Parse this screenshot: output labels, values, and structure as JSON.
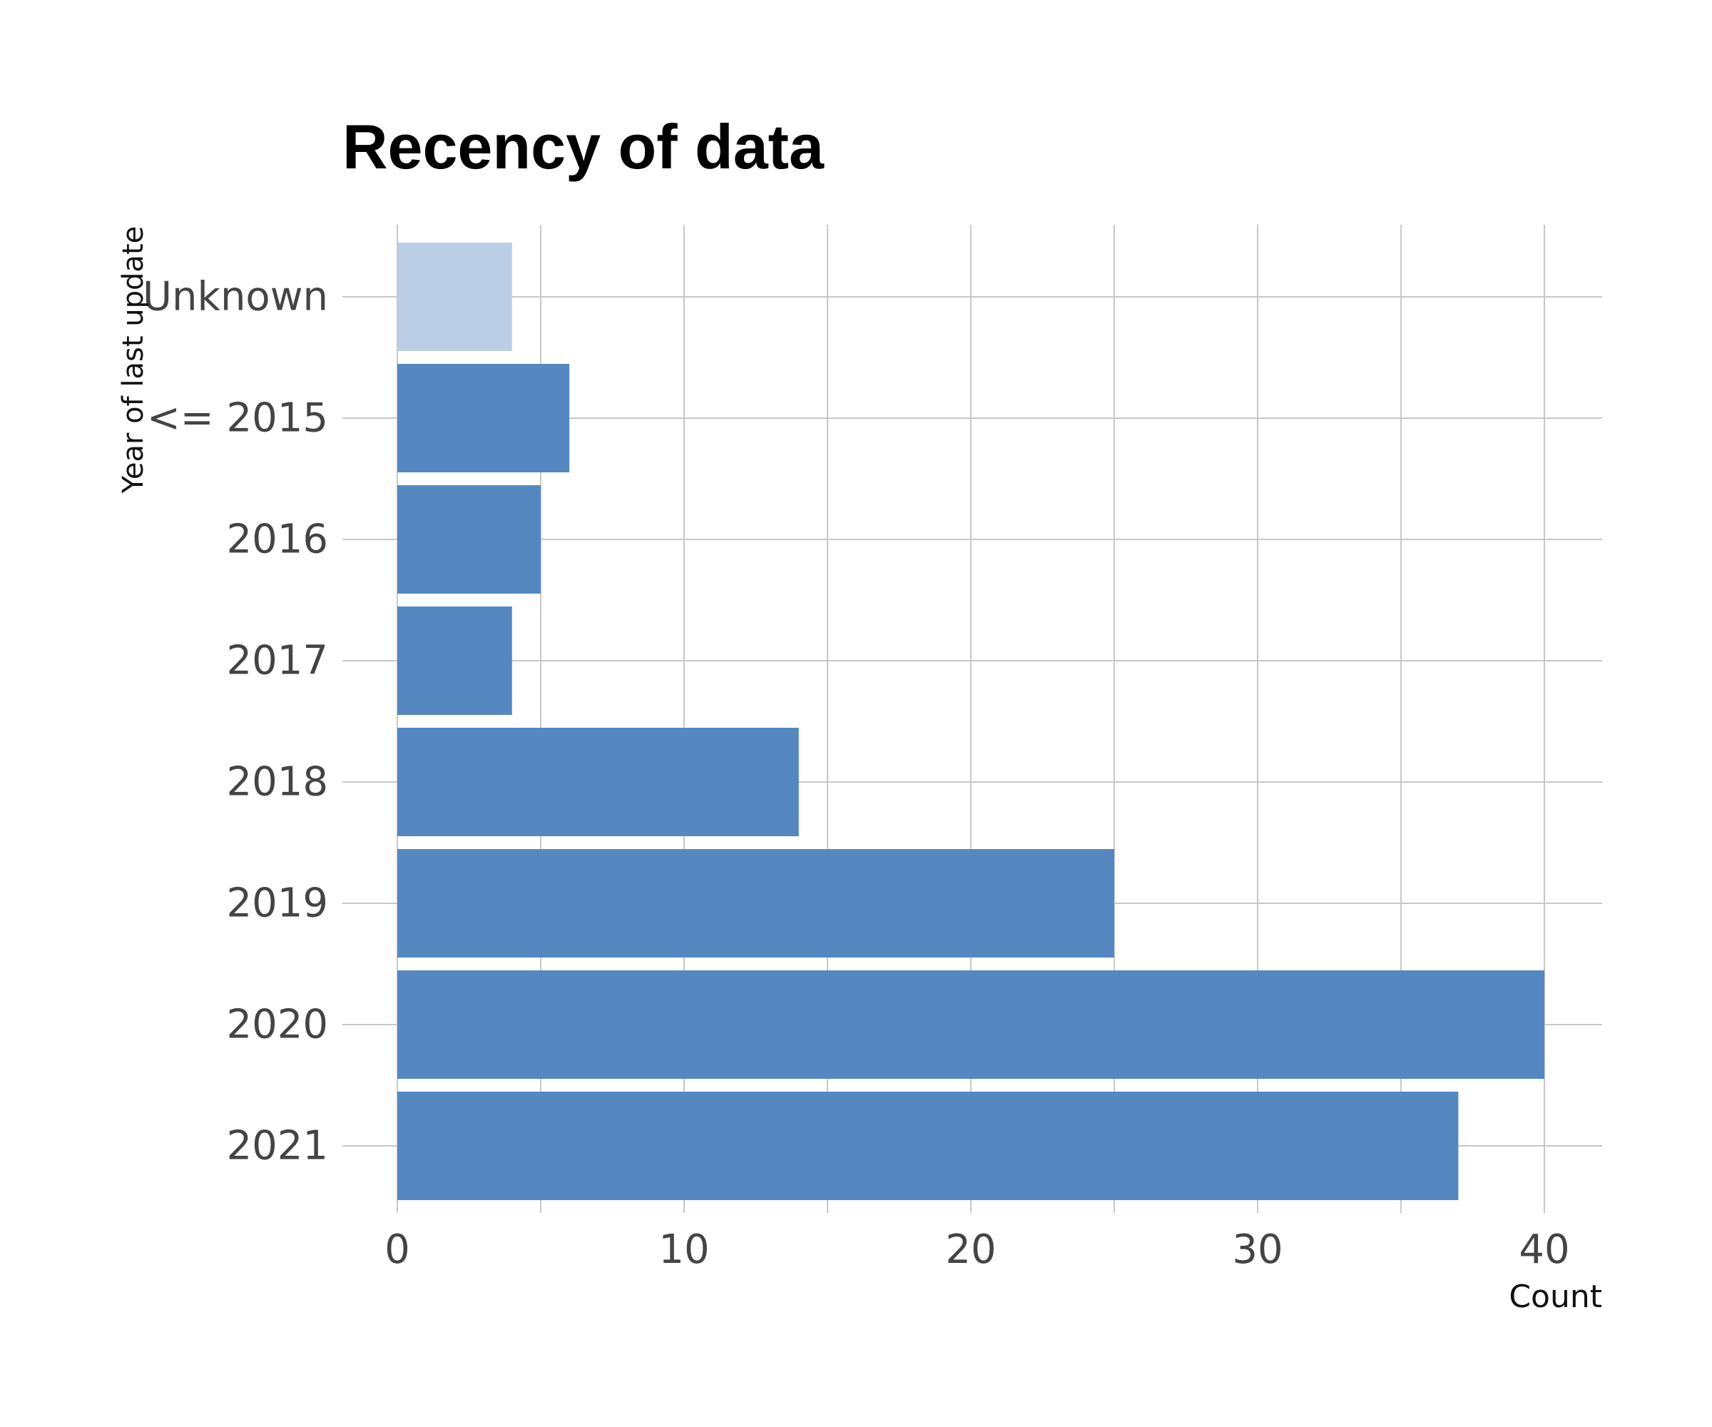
{
  "chart_data": {
    "type": "bar",
    "orientation": "horizontal",
    "title": "Recency of data",
    "xlabel": "Count",
    "ylabel": "Year of last update",
    "categories": [
      "Unknown",
      "<= 2015",
      "2016",
      "2017",
      "2018",
      "2019",
      "2020",
      "2021"
    ],
    "values": [
      4,
      6,
      5,
      4,
      14,
      25,
      40,
      37
    ],
    "bar_colors": [
      "#bccde6",
      "#5588c0",
      "#5588c0",
      "#5588c0",
      "#5588c0",
      "#5588c0",
      "#5588c0",
      "#5588c0"
    ],
    "xlim": [
      0,
      42
    ],
    "xticks": [
      0,
      10,
      20,
      30,
      40
    ],
    "grid": true,
    "legend": "none"
  }
}
